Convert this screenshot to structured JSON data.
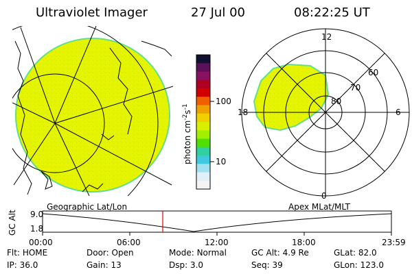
{
  "header": {
    "instrument": "Ultraviolet Imager",
    "date": "27 Jul 00",
    "time": "08:22:25 UT"
  },
  "left_panel": {
    "label": "Geographic Lat/Lon",
    "fill_color": "#e3f500",
    "edge_color": "#66dd88"
  },
  "right_panel": {
    "label": "Apex MLat/MLT",
    "mlt_labels": {
      "top": "12",
      "left": "18",
      "right": "6",
      "bottom": "0"
    },
    "lat_labels": [
      "80",
      "70",
      "60"
    ],
    "fill_color": "#e3f500"
  },
  "colorbar": {
    "unit_label": "photon cm",
    "unit_exp1": "-2",
    "unit_mid": "s",
    "unit_exp2": "-1",
    "tick_labels": [
      "100",
      "10"
    ],
    "colors": [
      "#101030",
      "#5a105a",
      "#8a1060",
      "#b00020",
      "#d00000",
      "#f06000",
      "#f0a000",
      "#f0d000",
      "#d8f000",
      "#a0f000",
      "#50e000",
      "#30d0a0",
      "#40c8e0",
      "#a0e0f0",
      "#e0f0f8",
      "#f4f4f4"
    ]
  },
  "timeline": {
    "y_axis_label": "GC Alt",
    "y_ticks": [
      "9.0",
      "1.8"
    ],
    "x_ticks": [
      "00:00",
      "06:00",
      "12:00",
      "18:00",
      "23:59"
    ],
    "marker_color": "#dd0000"
  },
  "info": {
    "row1": [
      {
        "key": "Flt:",
        "value": "HOME"
      },
      {
        "key": "Door:",
        "value": "Open"
      },
      {
        "key": "Mode:",
        "value": "Normal"
      },
      {
        "key": "GC Alt:",
        "value": "4.9 Re"
      },
      {
        "key": "GLat:",
        "value": "82.0"
      }
    ],
    "row2": [
      {
        "key": "IP:",
        "value": "36.0"
      },
      {
        "key": "Gain:",
        "value": "13"
      },
      {
        "key": "Dsp:",
        "value": "3.0"
      },
      {
        "key": "Seq:",
        "value": "39"
      },
      {
        "key": "GLon:",
        "value": "123.0"
      }
    ]
  }
}
